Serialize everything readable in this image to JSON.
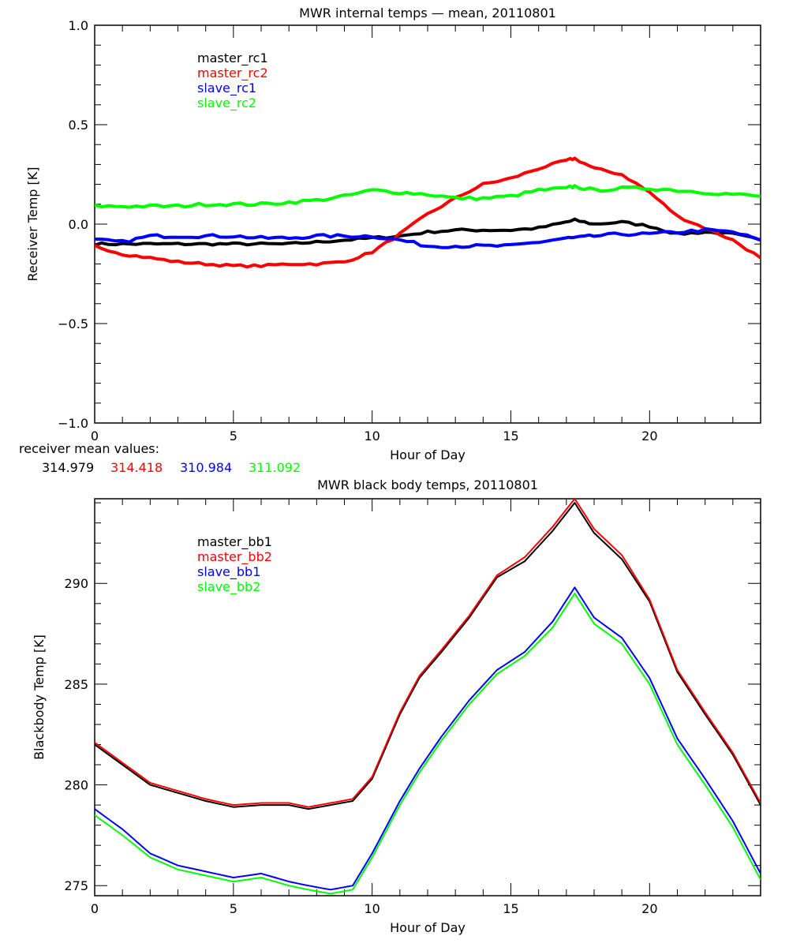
{
  "chart_data": [
    {
      "type": "line",
      "title": "MWR internal temps — mean, 20110801",
      "xlabel": "Hour of Day",
      "ylabel": "Receiver Temp [K]",
      "xlim": [
        0,
        24
      ],
      "ylim": [
        -1.0,
        1.0
      ],
      "xticks": [
        "0",
        "5",
        "10",
        "15",
        "20"
      ],
      "xtick_values": [
        0,
        5,
        10,
        15,
        20
      ],
      "yticks": [
        "−1.0",
        "−0.5",
        "0.0",
        "0.5",
        "1.0"
      ],
      "ytick_values": [
        -1.0,
        -0.5,
        0.0,
        0.5,
        1.0
      ],
      "grid": false,
      "legend_position": "top-left",
      "x": [
        0,
        1,
        2,
        3,
        4,
        5,
        6,
        7,
        8,
        9,
        10,
        11,
        12,
        13,
        14,
        15,
        16,
        17,
        17.3,
        18,
        19,
        20,
        21,
        22,
        23,
        24
      ],
      "series": [
        {
          "name": "master_rc1",
          "color": "#000000",
          "noise": 0.006,
          "values": [
            -0.1,
            -0.1,
            -0.1,
            -0.1,
            -0.1,
            -0.1,
            -0.1,
            -0.1,
            -0.09,
            -0.08,
            -0.07,
            -0.06,
            -0.04,
            -0.03,
            -0.03,
            -0.03,
            -0.02,
            0.01,
            0.02,
            0.0,
            0.01,
            -0.01,
            -0.05,
            -0.04,
            -0.05,
            -0.08
          ]
        },
        {
          "name": "master_rc2",
          "color": "#ff0000",
          "noise": 0.006,
          "values": [
            -0.11,
            -0.15,
            -0.17,
            -0.19,
            -0.2,
            -0.21,
            -0.21,
            -0.2,
            -0.2,
            -0.19,
            -0.14,
            -0.05,
            0.05,
            0.13,
            0.2,
            0.23,
            0.28,
            0.32,
            0.33,
            0.28,
            0.25,
            0.16,
            0.04,
            -0.02,
            -0.08,
            -0.17
          ]
        },
        {
          "name": "slave_rc1",
          "color": "#0000ff",
          "noise": 0.008,
          "values": [
            -0.08,
            -0.09,
            -0.06,
            -0.06,
            -0.06,
            -0.06,
            -0.07,
            -0.07,
            -0.06,
            -0.06,
            -0.06,
            -0.08,
            -0.11,
            -0.11,
            -0.11,
            -0.11,
            -0.09,
            -0.07,
            -0.07,
            -0.06,
            -0.05,
            -0.05,
            -0.04,
            -0.03,
            -0.04,
            -0.08
          ]
        },
        {
          "name": "slave_rc2",
          "color": "#00ff00",
          "noise": 0.008,
          "values": [
            0.09,
            0.09,
            0.09,
            0.09,
            0.1,
            0.1,
            0.1,
            0.11,
            0.12,
            0.14,
            0.17,
            0.16,
            0.15,
            0.13,
            0.13,
            0.14,
            0.17,
            0.18,
            0.19,
            0.17,
            0.18,
            0.18,
            0.17,
            0.16,
            0.15,
            0.14
          ]
        }
      ],
      "annotation": {
        "label": "receiver mean values:",
        "values": [
          {
            "text": "314.979",
            "color": "#000000"
          },
          {
            "text": "314.418",
            "color": "#ff0000"
          },
          {
            "text": "310.984",
            "color": "#0000ff"
          },
          {
            "text": "311.092",
            "color": "#00ff00"
          }
        ]
      }
    },
    {
      "type": "line",
      "title": "MWR black body temps, 20110801",
      "xlabel": "Hour of Day",
      "ylabel": "Blackbody Temp [K]",
      "xlim": [
        0,
        24
      ],
      "ylim": [
        274.5,
        294.2
      ],
      "xticks": [
        "0",
        "5",
        "10",
        "15",
        "20"
      ],
      "xtick_values": [
        0,
        5,
        10,
        15,
        20
      ],
      "yticks": [
        "275",
        "280",
        "285",
        "290"
      ],
      "ytick_values": [
        275,
        280,
        285,
        290
      ],
      "grid": false,
      "legend_position": "top-left",
      "x": [
        0,
        1,
        2,
        3,
        4,
        5,
        6,
        7,
        7.7,
        8.5,
        9.3,
        10,
        11,
        11.7,
        12.5,
        13.5,
        14.5,
        15.5,
        16.5,
        17.3,
        18,
        19,
        20,
        21,
        22,
        23,
        24
      ],
      "series": [
        {
          "name": "master_bb1",
          "color": "#000000",
          "values": [
            282.0,
            281.0,
            280.0,
            279.6,
            279.2,
            278.9,
            279.0,
            279.0,
            278.8,
            279.0,
            279.2,
            280.3,
            283.5,
            285.3,
            286.6,
            288.3,
            290.3,
            291.1,
            292.6,
            294.0,
            292.5,
            291.2,
            289.1,
            285.6,
            283.5,
            281.5,
            279.0
          ]
        },
        {
          "name": "master_bb2",
          "color": "#ff0000",
          "values": [
            282.1,
            281.1,
            280.1,
            279.7,
            279.3,
            279.0,
            279.1,
            279.1,
            278.9,
            279.1,
            279.3,
            280.4,
            283.6,
            285.4,
            286.7,
            288.4,
            290.4,
            291.3,
            292.8,
            294.2,
            292.7,
            291.4,
            289.2,
            285.7,
            283.6,
            281.6,
            279.1
          ]
        },
        {
          "name": "slave_bb1",
          "color": "#0000ff",
          "values": [
            278.8,
            277.8,
            276.6,
            276.0,
            275.7,
            275.4,
            275.6,
            275.2,
            275.0,
            274.8,
            275.0,
            276.6,
            279.2,
            280.8,
            282.4,
            284.2,
            285.7,
            286.6,
            288.1,
            289.8,
            288.3,
            287.3,
            285.3,
            282.3,
            280.3,
            278.2,
            275.6
          ]
        },
        {
          "name": "slave_bb2",
          "color": "#00ff00",
          "values": [
            278.5,
            277.5,
            276.4,
            275.8,
            275.5,
            275.2,
            275.4,
            275.0,
            274.8,
            274.6,
            274.8,
            276.4,
            279.0,
            280.6,
            282.2,
            284.0,
            285.5,
            286.4,
            287.8,
            289.5,
            288.0,
            287.0,
            285.0,
            282.0,
            280.0,
            277.9,
            275.3
          ]
        }
      ]
    }
  ]
}
